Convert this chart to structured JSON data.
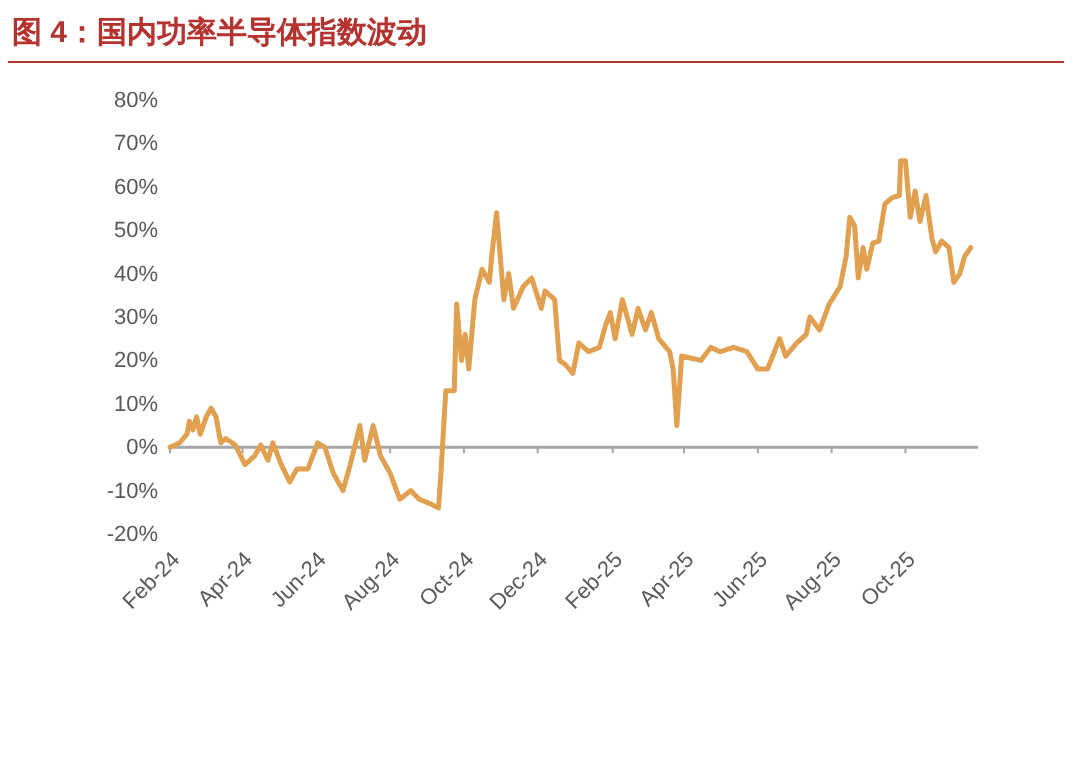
{
  "chart_data": {
    "type": "line",
    "title": "图 4：国内功率半导体指数波动",
    "x": [
      "2024-02-01",
      "2024-02-09",
      "2024-02-15",
      "2024-02-17",
      "2024-02-20",
      "2024-02-23",
      "2024-02-26",
      "2024-03-02",
      "2024-03-06",
      "2024-03-10",
      "2024-03-14",
      "2024-03-18",
      "2024-03-26",
      "2024-04-03",
      "2024-04-11",
      "2024-04-16",
      "2024-04-22",
      "2024-04-26",
      "2024-05-03",
      "2024-05-10",
      "2024-05-16",
      "2024-05-25",
      "2024-06-02",
      "2024-06-08",
      "2024-06-15",
      "2024-06-23",
      "2024-06-29",
      "2024-07-07",
      "2024-07-11",
      "2024-07-18",
      "2024-07-24",
      "2024-08-01",
      "2024-08-09",
      "2024-08-18",
      "2024-08-25",
      "2024-09-03",
      "2024-09-10",
      "2024-09-12",
      "2024-09-16",
      "2024-09-23",
      "2024-09-25",
      "2024-09-29",
      "2024-10-02",
      "2024-10-05",
      "2024-10-10",
      "2024-10-16",
      "2024-10-22",
      "2024-10-24",
      "2024-10-28",
      "2024-11-03",
      "2024-11-07",
      "2024-11-11",
      "2024-11-19",
      "2024-11-26",
      "2024-12-04",
      "2024-12-07",
      "2024-12-15",
      "2024-12-19",
      "2024-12-24",
      "2024-12-30",
      "2025-01-04",
      "2025-01-12",
      "2025-01-21",
      "2025-01-26",
      "2025-01-30",
      "2025-02-03",
      "2025-02-09",
      "2025-02-17",
      "2025-02-22",
      "2025-02-28",
      "2025-03-05",
      "2025-03-11",
      "2025-03-20",
      "2025-03-23",
      "2025-03-26",
      "2025-03-30",
      "2025-04-07",
      "2025-04-15",
      "2025-04-23",
      "2025-05-01",
      "2025-05-12",
      "2025-05-23",
      "2025-06-01",
      "2025-06-09",
      "2025-06-19",
      "2025-06-24",
      "2025-07-03",
      "2025-07-11",
      "2025-07-14",
      "2025-07-22",
      "2025-07-30",
      "2025-08-08",
      "2025-08-13",
      "2025-08-16",
      "2025-08-20",
      "2025-08-23",
      "2025-08-27",
      "2025-08-30",
      "2025-09-04",
      "2025-09-09",
      "2025-09-14",
      "2025-09-20",
      "2025-09-26",
      "2025-09-27",
      "2025-10-01",
      "2025-10-05",
      "2025-10-09",
      "2025-10-13",
      "2025-10-18",
      "2025-10-23",
      "2025-10-26",
      "2025-10-31",
      "2025-11-06",
      "2025-11-10",
      "2025-11-15",
      "2025-11-19",
      "2025-11-24"
    ],
    "series": [
      {
        "color": "#e0a050",
        "values": [
          0,
          1,
          3,
          6,
          4,
          7,
          3,
          7,
          9,
          7,
          1,
          2,
          0.5,
          -4,
          -2,
          0.5,
          -3,
          1,
          -4,
          -8,
          -5,
          -5,
          1,
          0,
          -6,
          -10,
          -4,
          5,
          -3,
          5,
          -2,
          -6,
          -12,
          -10,
          -12,
          -13,
          -14,
          -6,
          13,
          13,
          33,
          20,
          26,
          18,
          34,
          41,
          38,
          44,
          54,
          34,
          40,
          32,
          37,
          39,
          32,
          36,
          34,
          20,
          19,
          17,
          24,
          22,
          23,
          28,
          31,
          25,
          34,
          26,
          32,
          27,
          31,
          25,
          22,
          18,
          5,
          21,
          20.5,
          20,
          23,
          22,
          23,
          22,
          18,
          18,
          25,
          21,
          24,
          26,
          30,
          27,
          33,
          37,
          44,
          53,
          51,
          39,
          46,
          41,
          47,
          47.5,
          56,
          57.5,
          58,
          66,
          66,
          53,
          59,
          52,
          58,
          48,
          45,
          47.5,
          46,
          38,
          40,
          44,
          46
        ]
      }
    ],
    "xlim": [
      "2024-02-01",
      "2025-11-30"
    ],
    "xticks": [
      {
        "value": "2024-02-01",
        "label": "Feb-24"
      },
      {
        "value": "2024-04-01",
        "label": "Apr-24"
      },
      {
        "value": "2024-06-01",
        "label": "Jun-24"
      },
      {
        "value": "2024-08-01",
        "label": "Aug-24"
      },
      {
        "value": "2024-10-01",
        "label": "Oct-24"
      },
      {
        "value": "2024-12-01",
        "label": "Dec-24"
      },
      {
        "value": "2025-02-01",
        "label": "Feb-25"
      },
      {
        "value": "2025-04-01",
        "label": "Apr-25"
      },
      {
        "value": "2025-06-01",
        "label": "Jun-25"
      },
      {
        "value": "2025-08-01",
        "label": "Aug-25"
      },
      {
        "value": "2025-10-01",
        "label": "Oct-25"
      }
    ],
    "ylim": [
      -20,
      80
    ],
    "yticks": [
      {
        "value": -20,
        "label": "-20%"
      },
      {
        "value": -10,
        "label": "-10%"
      },
      {
        "value": 0,
        "label": "0%"
      },
      {
        "value": 10,
        "label": "10%"
      },
      {
        "value": 20,
        "label": "20%"
      },
      {
        "value": 30,
        "label": "30%"
      },
      {
        "value": 40,
        "label": "40%"
      },
      {
        "value": 50,
        "label": "50%"
      },
      {
        "value": 60,
        "label": "60%"
      },
      {
        "value": 70,
        "label": "70%"
      },
      {
        "value": 80,
        "label": "80%"
      }
    ],
    "ref_lines": [
      {
        "axis": "y",
        "value": 0,
        "color": "#a6a6a6"
      }
    ],
    "grid": false,
    "marker": "none",
    "line_style": "solid"
  }
}
